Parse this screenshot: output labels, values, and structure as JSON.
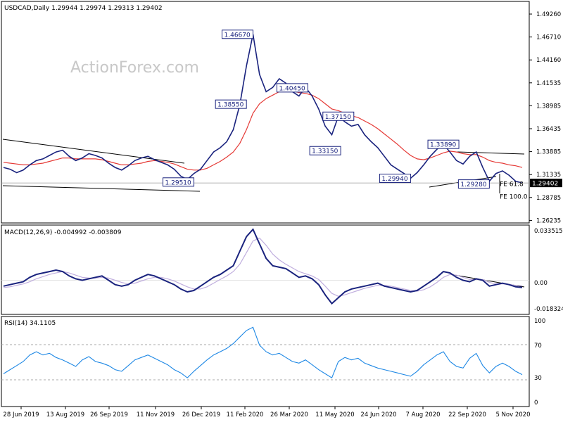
{
  "chart_data": [
    {
      "type": "line",
      "panel": "price",
      "title": "USDCAD,Daily  1.29944 1.29974 1.29313 1.29402",
      "watermark": "ActionForex.com",
      "y_ticks": [
        "1.49260",
        "1.46710",
        "1.44160",
        "1.41535",
        "1.38985",
        "1.36435",
        "1.33885",
        "1.31335",
        "1.28785",
        "1.26235"
      ],
      "ylim": [
        1.25,
        1.5
      ],
      "current_price": "1.29402",
      "x_ticks": [
        "28 Jun 2019",
        "13 Aug 2019",
        "26 Sep 2019",
        "11 Nov 2019",
        "26 Dec 2019",
        "11 Feb 2020",
        "26 Mar 2020",
        "11 May 2020",
        "24 Jun 2020",
        "7 Aug 2020",
        "22 Sep 2020",
        "5 Nov 2020"
      ],
      "series": [
        {
          "color": "#1a237e",
          "values": [
            1.312,
            1.31,
            1.306,
            1.309,
            1.315,
            1.32,
            1.322,
            1.326,
            1.33,
            1.332,
            1.325,
            1.32,
            1.323,
            1.328,
            1.326,
            1.323,
            1.317,
            1.312,
            1.309,
            1.314,
            1.32,
            1.323,
            1.325,
            1.321,
            1.318,
            1.315,
            1.31,
            1.302,
            1.298,
            1.305,
            1.31,
            1.32,
            1.33,
            1.335,
            1.342,
            1.356,
            1.385,
            1.43,
            1.4667,
            1.42,
            1.4,
            1.405,
            1.415,
            1.41,
            1.4,
            1.395,
            1.405,
            1.395,
            1.38,
            1.36,
            1.35,
            1.3715,
            1.365,
            1.36,
            1.362,
            1.35,
            1.342,
            1.335,
            1.325,
            1.315,
            1.31,
            1.305,
            1.2994,
            1.306,
            1.315,
            1.325,
            1.333,
            1.3389,
            1.33,
            1.32,
            1.316,
            1.325,
            1.33,
            1.312,
            1.296,
            1.305,
            1.308,
            1.303,
            1.296,
            1.294
          ]
        },
        {
          "color": "#e53935",
          "values": [
            1.318,
            1.317,
            1.316,
            1.315,
            1.315,
            1.316,
            1.317,
            1.319,
            1.321,
            1.323,
            1.323,
            1.322,
            1.322,
            1.322,
            1.322,
            1.321,
            1.319,
            1.317,
            1.315,
            1.315,
            1.316,
            1.317,
            1.319,
            1.32,
            1.319,
            1.318,
            1.316,
            1.313,
            1.31,
            1.309,
            1.309,
            1.311,
            1.315,
            1.319,
            1.324,
            1.33,
            1.34,
            1.356,
            1.375,
            1.386,
            1.392,
            1.396,
            1.4,
            1.402,
            1.401,
            1.399,
            1.398,
            1.396,
            1.392,
            1.386,
            1.38,
            1.378,
            1.375,
            1.372,
            1.37,
            1.366,
            1.362,
            1.357,
            1.351,
            1.345,
            1.339,
            1.332,
            1.326,
            1.322,
            1.321,
            1.323,
            1.326,
            1.329,
            1.331,
            1.33,
            1.328,
            1.327,
            1.327,
            1.324,
            1.32,
            1.318,
            1.317,
            1.315,
            1.314,
            1.312
          ]
        }
      ],
      "annotations": [
        {
          "text": "1.46670",
          "index": 38,
          "y": 1.4667,
          "pos": "left"
        },
        {
          "text": "1.38550",
          "index": 37,
          "y": 1.3855,
          "pos": "left"
        },
        {
          "text": "1.40450",
          "index": 44,
          "y": 1.4045,
          "pos": "center"
        },
        {
          "text": "1.37150",
          "index": 51,
          "y": 1.3715,
          "pos": "center"
        },
        {
          "text": "1.33150",
          "index": 49,
          "y": 1.3315,
          "pos": "center"
        },
        {
          "text": "1.29510",
          "index": 29,
          "y": 1.2951,
          "pos": "left"
        },
        {
          "text": "1.29940",
          "index": 62,
          "y": 1.2994,
          "pos": "left"
        },
        {
          "text": "1.33890",
          "index": 67,
          "y": 1.3389,
          "pos": "center"
        },
        {
          "text": "1.29280",
          "index": 74,
          "y": 1.2928,
          "pos": "left"
        }
      ],
      "fib_labels": [
        {
          "text": "FE 61.8",
          "y": 1.2928
        },
        {
          "text": "FE 100.0",
          "y": 1.278
        }
      ]
    },
    {
      "type": "line",
      "panel": "macd",
      "title": "MACD(12,26,9) -0.004992 -0.003809",
      "y_ticks": [
        "0.033515",
        "0.00",
        "-0.018324"
      ],
      "ylim": [
        -0.022,
        0.036
      ],
      "series": [
        {
          "color": "#1a237e",
          "values": [
            -0.004,
            -0.003,
            -0.002,
            -0.001,
            0.002,
            0.004,
            0.005,
            0.006,
            0.007,
            0.006,
            0.003,
            0.001,
            0.0,
            0.001,
            0.002,
            0.003,
            0.0,
            -0.003,
            -0.004,
            -0.003,
            0.0,
            0.002,
            0.004,
            0.003,
            0.001,
            -0.001,
            -0.003,
            -0.006,
            -0.008,
            -0.007,
            -0.004,
            -0.001,
            0.002,
            0.004,
            0.007,
            0.01,
            0.02,
            0.03,
            0.035,
            0.025,
            0.015,
            0.01,
            0.009,
            0.008,
            0.005,
            0.002,
            0.003,
            0.001,
            -0.003,
            -0.01,
            -0.016,
            -0.012,
            -0.008,
            -0.006,
            -0.005,
            -0.004,
            -0.003,
            -0.002,
            -0.004,
            -0.005,
            -0.006,
            -0.007,
            -0.008,
            -0.007,
            -0.004,
            -0.001,
            0.002,
            0.006,
            0.005,
            0.002,
            0.0,
            -0.001,
            0.001,
            0.0,
            -0.004,
            -0.003,
            -0.002,
            -0.003,
            -0.0045,
            -0.005
          ]
        },
        {
          "color": "#c0aede",
          "values": [
            -0.005,
            -0.0045,
            -0.0035,
            -0.0025,
            -0.001,
            0.001,
            0.0025,
            0.004,
            0.005,
            0.006,
            0.005,
            0.0035,
            0.002,
            0.0015,
            0.0015,
            0.002,
            0.0015,
            0.0,
            -0.0015,
            -0.0025,
            -0.002,
            -0.0005,
            0.001,
            0.002,
            0.002,
            0.001,
            -0.0005,
            -0.0025,
            -0.0045,
            -0.006,
            -0.006,
            -0.0045,
            -0.002,
            0.0005,
            0.003,
            0.006,
            0.011,
            0.019,
            0.027,
            0.029,
            0.024,
            0.018,
            0.014,
            0.011,
            0.0085,
            0.006,
            0.0045,
            0.003,
            0.0005,
            -0.004,
            -0.009,
            -0.011,
            -0.01,
            -0.0085,
            -0.007,
            -0.0055,
            -0.0045,
            -0.0035,
            -0.0035,
            -0.004,
            -0.005,
            -0.006,
            -0.007,
            -0.0075,
            -0.0065,
            -0.0045,
            -0.0015,
            0.002,
            0.004,
            0.0035,
            0.002,
            0.0005,
            0.0005,
            0.0005,
            -0.0015,
            -0.0025,
            -0.0025,
            -0.0028,
            -0.0035,
            -0.0038
          ]
        }
      ]
    },
    {
      "type": "line",
      "panel": "rsi",
      "title": "RSI(14) 34.1105",
      "y_ticks": [
        "100",
        "70",
        "30",
        "0"
      ],
      "ylim": [
        0,
        100
      ],
      "series": [
        {
          "color": "#1e88e5",
          "values": [
            35,
            40,
            45,
            50,
            58,
            62,
            58,
            60,
            55,
            52,
            48,
            44,
            52,
            56,
            50,
            48,
            45,
            40,
            38,
            45,
            52,
            55,
            58,
            54,
            50,
            46,
            40,
            36,
            30,
            38,
            45,
            52,
            58,
            62,
            66,
            72,
            80,
            88,
            92,
            70,
            62,
            58,
            60,
            55,
            50,
            48,
            52,
            46,
            40,
            35,
            30,
            50,
            55,
            52,
            54,
            48,
            45,
            42,
            40,
            38,
            36,
            34,
            32,
            38,
            46,
            52,
            58,
            62,
            50,
            44,
            42,
            54,
            60,
            45,
            36,
            44,
            48,
            44,
            38,
            34
          ]
        }
      ]
    }
  ]
}
